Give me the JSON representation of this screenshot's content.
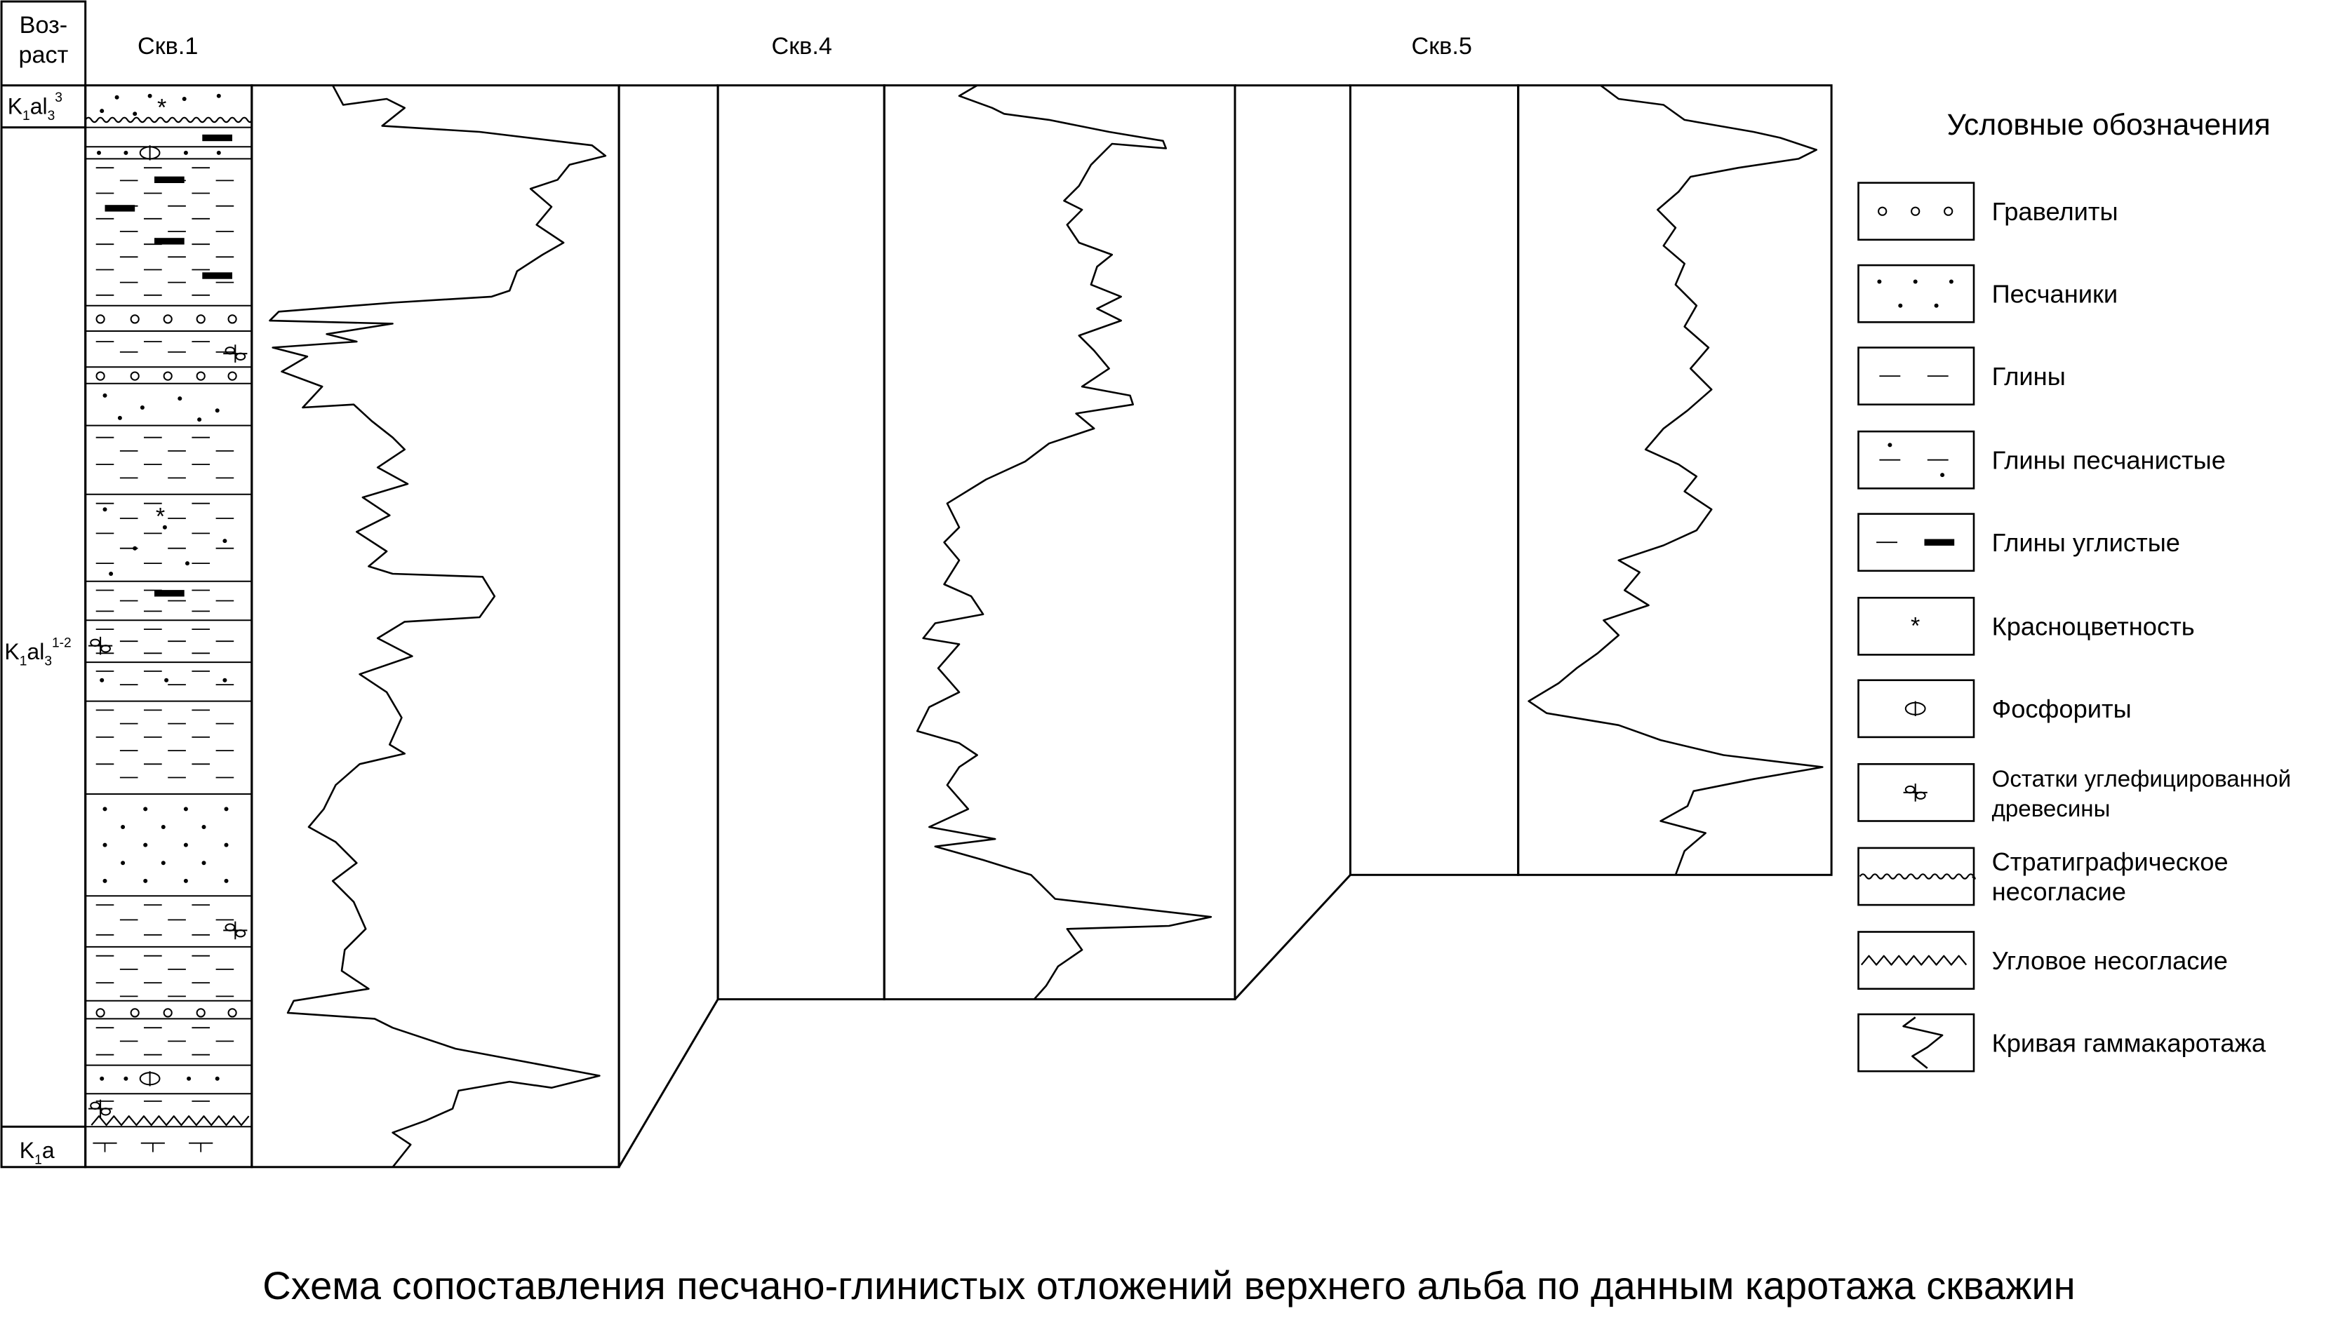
{
  "age_header": [
    "Воз-",
    "раст"
  ],
  "wells": [
    "Скв.1",
    "Скв.4",
    "Скв.5"
  ],
  "ages": {
    "top": {
      "base": "K",
      "sub": "1",
      "mid": "al",
      "sub2": "3",
      "sup": "3"
    },
    "middle": {
      "base": "K",
      "sub": "1",
      "mid": "al",
      "sub2": "3",
      "sup": "1-2"
    },
    "bottom": {
      "base": "K",
      "sub": "1",
      "mid": "a"
    }
  },
  "legend": {
    "title": "Условные обозначения",
    "items": [
      {
        "symbol": "gravel",
        "label": "Гравелиты"
      },
      {
        "symbol": "sand",
        "label": "Песчаники"
      },
      {
        "symbol": "clay",
        "label": "Глины"
      },
      {
        "symbol": "sandy-clay",
        "label": "Глины песчанистые"
      },
      {
        "symbol": "coaly-clay",
        "label": "Глины углистые"
      },
      {
        "symbol": "red",
        "label": "Красноцветность"
      },
      {
        "symbol": "phosphorite",
        "label": "Фосфориты"
      },
      {
        "symbol": "wood",
        "label": [
          "Остатки углефицированной",
          "древесины"
        ]
      },
      {
        "symbol": "strat",
        "label": [
          "Стратиграфическое",
          "несогласие"
        ]
      },
      {
        "symbol": "angular",
        "label": "Угловое несогласие"
      },
      {
        "symbol": "gamma",
        "label": "Кривая гаммакаротажа"
      }
    ]
  },
  "caption": "Схема сопоставления песчано-глинистых отложений верхнего альба по данным каротажа скважин"
}
